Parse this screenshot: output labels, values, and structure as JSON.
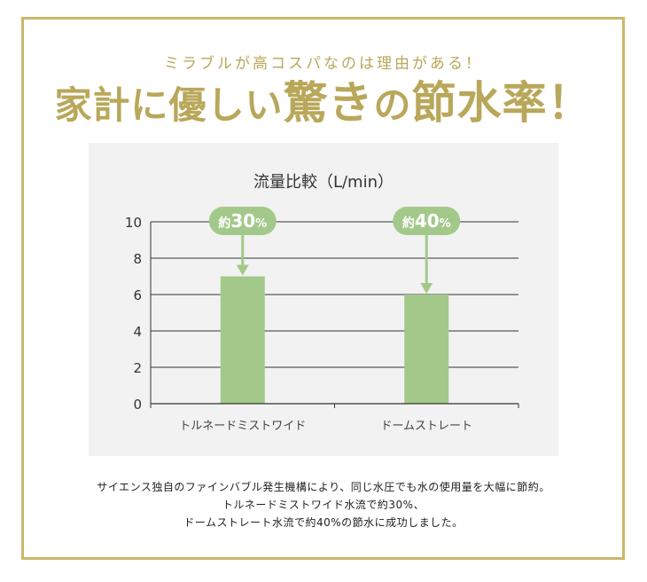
{
  "subtitle": "ミラブルが高コスパなのは理由がある！",
  "headline": {
    "part1": "家計に優しい",
    "part2": "驚き",
    "part3": "の",
    "part4": "節水率",
    "part5": "！"
  },
  "colors": {
    "gold": "#b9a75a",
    "bar": "#a3c98a",
    "callout": "#a3c98a",
    "panel": "#f2f2f2"
  },
  "chart_data": {
    "type": "bar",
    "title": "流量比較（L/min）",
    "categories": [
      "トルネードミストワイド",
      "ドームストレート"
    ],
    "values": [
      7,
      6
    ],
    "ylim": [
      0,
      10
    ],
    "yticks": [
      0,
      2,
      4,
      6,
      8,
      10
    ],
    "grid": true,
    "annotations": [
      {
        "prefix": "約",
        "number": "30",
        "unit": "%"
      },
      {
        "prefix": "約",
        "number": "40",
        "unit": "%"
      }
    ]
  },
  "description": [
    "サイエンス独自のファインバブル発生機構により、同じ水圧でも水の使用量を大幅に節約。",
    "トルネードミストワイド水流で約30%、",
    "ドームストレート水流で約40%の節水に成功しました。"
  ]
}
